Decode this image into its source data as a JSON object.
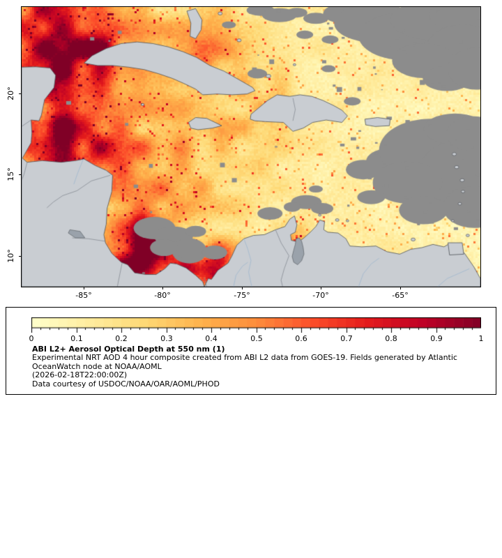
{
  "figure": {
    "background": "#ffffff"
  },
  "map": {
    "x_tick_labels": [
      "-85°",
      "-80°",
      "-75°",
      "-70°",
      "-65°"
    ],
    "y_tick_labels": [
      "20°",
      "15°",
      "10°"
    ]
  },
  "colorbar": {
    "tick_labels": [
      "0",
      "0.1",
      "0.2",
      "0.3",
      "0.4",
      "0.5",
      "0.6",
      "0.7",
      "0.8",
      "0.9",
      "1"
    ]
  },
  "caption": {
    "title": "ABI L2+ Aerosol Optical Depth at 550 nm (1)",
    "line1": "Experimental NRT AOD 4 hour composite created from ABI L2 data from GOES-19. Fields generated by Atlantic",
    "line2": "OceanWatch node at NOAA/AOML",
    "timestamp": "(2026-02-18T22:00:00Z)",
    "credit": "Data courtesy of USDOC/NOAA/OAR/AOML/PHOD"
  },
  "chart_data": {
    "type": "heatmap",
    "title": "ABI L2+ Aerosol Optical Depth at 550 nm (1)",
    "x_ticks": [
      -85,
      -80,
      -75,
      -70,
      -65
    ],
    "y_ticks": [
      20,
      15,
      10
    ],
    "lon_range": [
      -88.9,
      -59.9
    ],
    "lat_range": [
      8.1,
      25.3
    ],
    "value_range": [
      0,
      1
    ],
    "colorbar_ticks": [
      0,
      0.1,
      0.2,
      0.3,
      0.4,
      0.5,
      0.6,
      0.7,
      0.8,
      0.9,
      1
    ],
    "colorbar_levels": 50,
    "colormap_name": "YlOrRd",
    "colormap_stops": [
      {
        "pos": 0.0,
        "color": "#ffffcc"
      },
      {
        "pos": 0.125,
        "color": "#ffeda0"
      },
      {
        "pos": 0.25,
        "color": "#fed976"
      },
      {
        "pos": 0.375,
        "color": "#feb24c"
      },
      {
        "pos": 0.5,
        "color": "#fd8d3c"
      },
      {
        "pos": 0.625,
        "color": "#fc4e2a"
      },
      {
        "pos": 0.75,
        "color": "#e31a1c"
      },
      {
        "pos": 0.875,
        "color": "#bd0026"
      },
      {
        "pos": 1.0,
        "color": "#800026"
      }
    ],
    "land_color": "#c9cdd2",
    "missing_color": "#8c8c8c",
    "lake_color": "#9aa2ab",
    "coast_color": "#4d5257",
    "border_color": "#7d838b",
    "river_color": "#9ab4cf",
    "aod_base": 0.17,
    "aod_east_gradient": 0.07,
    "cloud_speckles": 380,
    "aod_hotspots": [
      {
        "lon": -87.8,
        "lat": 24.6,
        "amp": 0.5,
        "r": 95
      },
      {
        "lon": -85.0,
        "lat": 17.5,
        "amp": 0.22,
        "r": 150
      },
      {
        "lon": -86.5,
        "lat": 21.0,
        "amp": 0.3,
        "r": 60
      },
      {
        "lon": -86.6,
        "lat": 18.5,
        "amp": 0.3,
        "r": 70
      },
      {
        "lon": -85.5,
        "lat": 16.6,
        "amp": 0.3,
        "r": 45
      },
      {
        "lon": -83.5,
        "lat": 22.9,
        "amp": 0.28,
        "r": 55
      },
      {
        "lon": -77.5,
        "lat": 23.0,
        "amp": 0.25,
        "r": 60
      },
      {
        "lon": -81.6,
        "lat": 10.6,
        "amp": 0.8,
        "r": 55
      },
      {
        "lon": -77.15,
        "lat": 9.1,
        "amp": 0.75,
        "r": 40
      },
      {
        "lon": -71.6,
        "lat": 9.9,
        "amp": 0.5,
        "r": 32
      },
      {
        "lon": -74.0,
        "lat": 19.2,
        "amp": 0.12,
        "r": 70
      },
      {
        "lon": -79.5,
        "lat": 15.5,
        "amp": 0.15,
        "r": 110
      }
    ],
    "clouds": [
      [
        -68.3,
        24.9,
        35,
        15
      ],
      [
        -66.5,
        24.3,
        60,
        28
      ],
      [
        -64.5,
        23.5,
        70,
        35
      ],
      [
        -62.5,
        24.5,
        70,
        30
      ],
      [
        -60.5,
        24.8,
        60,
        25
      ],
      [
        -61.0,
        22.5,
        55,
        40
      ],
      [
        -63.5,
        22.0,
        45,
        25
      ],
      [
        -62.0,
        20.9,
        35,
        18
      ],
      [
        -60.2,
        21.5,
        40,
        30
      ],
      [
        -70.3,
        24.6,
        18,
        8
      ],
      [
        -71.5,
        24.95,
        15,
        7
      ],
      [
        -69.4,
        23.3,
        12,
        6
      ],
      [
        -67.3,
        15.3,
        25,
        14
      ],
      [
        -65.8,
        15.8,
        30,
        18
      ],
      [
        -63.0,
        16.5,
        75,
        45
      ],
      [
        -61.0,
        15.0,
        65,
        50
      ],
      [
        -64.5,
        14.5,
        50,
        30
      ],
      [
        -61.5,
        17.8,
        45,
        22
      ],
      [
        -60.3,
        17.5,
        40,
        25
      ],
      [
        -60.3,
        13.0,
        45,
        30
      ],
      [
        -63.5,
        12.8,
        35,
        20
      ],
      [
        -66.8,
        13.6,
        20,
        10
      ],
      [
        -70.9,
        13.3,
        22,
        10
      ],
      [
        -69.9,
        12.9,
        16,
        8
      ],
      [
        -71.8,
        13.0,
        12,
        7
      ],
      [
        -70.3,
        14.1,
        10,
        5
      ],
      [
        -73.2,
        12.6,
        18,
        9
      ],
      [
        -80.5,
        11.7,
        30,
        16
      ],
      [
        -79.3,
        11.2,
        28,
        14
      ],
      [
        -78.3,
        10.3,
        25,
        18
      ],
      [
        -79.9,
        10.5,
        20,
        12
      ],
      [
        -77.9,
        11.5,
        15,
        8
      ],
      [
        -76.7,
        10.2,
        18,
        10
      ],
      [
        -73.8,
        25.1,
        20,
        8
      ],
      [
        -72.6,
        24.8,
        25,
        10
      ],
      [
        -71.0,
        23.6,
        12,
        6
      ],
      [
        -75.8,
        24.2,
        10,
        5
      ],
      [
        -74.0,
        21.2,
        14,
        7
      ],
      [
        -69.5,
        21.5,
        10,
        5
      ],
      [
        -68.0,
        19.5,
        12,
        6
      ]
    ],
    "land_polygons": [
      [
        [
          -88.9,
          21.6
        ],
        [
          -88.0,
          21.62
        ],
        [
          -87.1,
          21.55
        ],
        [
          -86.75,
          21.1
        ],
        [
          -86.85,
          20.35
        ],
        [
          -87.45,
          19.6
        ],
        [
          -87.65,
          18.65
        ],
        [
          -87.8,
          18.3
        ],
        [
          -88.3,
          18.35
        ],
        [
          -88.25,
          17.55
        ],
        [
          -88.3,
          16.95
        ],
        [
          -88.85,
          16.0
        ],
        [
          -88.55,
          15.75
        ],
        [
          -87.6,
          15.85
        ],
        [
          -86.4,
          15.75
        ],
        [
          -85.5,
          15.85
        ],
        [
          -84.95,
          15.95
        ],
        [
          -84.25,
          15.55
        ],
        [
          -83.55,
          15.25
        ],
        [
          -83.15,
          14.95
        ],
        [
          -83.2,
          13.95
        ],
        [
          -83.5,
          12.9
        ],
        [
          -83.55,
          11.95
        ],
        [
          -83.7,
          11.3
        ],
        [
          -83.6,
          10.8
        ],
        [
          -83.2,
          10.15
        ],
        [
          -82.6,
          9.6
        ],
        [
          -82.2,
          9.45
        ],
        [
          -81.75,
          8.95
        ],
        [
          -81.05,
          8.85
        ],
        [
          -80.4,
          8.85
        ],
        [
          -79.85,
          9.2
        ],
        [
          -79.5,
          9.55
        ],
        [
          -79.1,
          9.5
        ],
        [
          -78.5,
          9.25
        ],
        [
          -77.9,
          8.8
        ],
        [
          -77.45,
          8.4
        ],
        [
          -77.35,
          8.1
        ],
        [
          -88.9,
          8.1
        ]
      ],
      [
        [
          -77.35,
          8.1
        ],
        [
          -77.1,
          8.6
        ],
        [
          -76.9,
          8.55
        ],
        [
          -76.5,
          9.1
        ],
        [
          -75.85,
          9.55
        ],
        [
          -75.6,
          10.0
        ],
        [
          -75.3,
          10.65
        ],
        [
          -74.85,
          11.05
        ],
        [
          -74.25,
          11.25
        ],
        [
          -73.55,
          11.3
        ],
        [
          -72.85,
          11.6
        ],
        [
          -72.25,
          11.8
        ],
        [
          -71.95,
          12.25
        ],
        [
          -71.65,
          12.45
        ],
        [
          -71.5,
          11.9
        ],
        [
          -71.6,
          11.45
        ],
        [
          -71.9,
          11.3
        ],
        [
          -71.85,
          10.95
        ],
        [
          -71.4,
          10.85
        ],
        [
          -71.05,
          11.1
        ],
        [
          -70.65,
          11.45
        ],
        [
          -70.3,
          11.8
        ],
        [
          -70.05,
          12.2
        ],
        [
          -69.75,
          12.1
        ],
        [
          -69.8,
          11.6
        ],
        [
          -69.55,
          11.45
        ],
        [
          -68.9,
          11.4
        ],
        [
          -68.4,
          11.05
        ],
        [
          -68.15,
          10.6
        ],
        [
          -67.4,
          10.55
        ],
        [
          -66.5,
          10.6
        ],
        [
          -65.8,
          10.25
        ],
        [
          -65.0,
          10.1
        ],
        [
          -64.3,
          10.4
        ],
        [
          -63.6,
          10.5
        ],
        [
          -62.9,
          10.7
        ],
        [
          -62.2,
          10.55
        ],
        [
          -61.85,
          10.75
        ],
        [
          -61.5,
          10.6
        ],
        [
          -60.9,
          10.15
        ],
        [
          -60.3,
          9.3
        ],
        [
          -59.9,
          8.6
        ],
        [
          -59.9,
          8.1
        ]
      ],
      [
        [
          -84.95,
          21.85
        ],
        [
          -84.45,
          22.3
        ],
        [
          -83.55,
          22.75
        ],
        [
          -82.6,
          23.05
        ],
        [
          -81.6,
          23.15
        ],
        [
          -80.6,
          23.05
        ],
        [
          -79.65,
          22.85
        ],
        [
          -78.7,
          22.55
        ],
        [
          -77.85,
          22.2
        ],
        [
          -77.0,
          21.7
        ],
        [
          -76.1,
          21.35
        ],
        [
          -75.2,
          20.85
        ],
        [
          -74.3,
          20.35
        ],
        [
          -74.15,
          20.15
        ],
        [
          -74.65,
          19.95
        ],
        [
          -75.6,
          19.9
        ],
        [
          -76.55,
          19.95
        ],
        [
          -77.45,
          19.9
        ],
        [
          -77.9,
          20.25
        ],
        [
          -78.65,
          20.6
        ],
        [
          -79.35,
          20.9
        ],
        [
          -80.25,
          21.2
        ],
        [
          -81.15,
          21.45
        ],
        [
          -82.15,
          21.6
        ],
        [
          -83.15,
          21.7
        ],
        [
          -84.1,
          21.7
        ]
      ],
      [
        [
          -74.45,
          18.4
        ],
        [
          -74.4,
          18.7
        ],
        [
          -73.35,
          19.55
        ],
        [
          -72.75,
          19.9
        ],
        [
          -71.95,
          19.8
        ],
        [
          -71.3,
          19.9
        ],
        [
          -70.55,
          19.8
        ],
        [
          -69.85,
          19.55
        ],
        [
          -69.2,
          19.25
        ],
        [
          -68.65,
          18.95
        ],
        [
          -68.3,
          18.6
        ],
        [
          -68.65,
          18.2
        ],
        [
          -69.65,
          18.35
        ],
        [
          -70.5,
          18.2
        ],
        [
          -71.1,
          17.85
        ],
        [
          -71.75,
          17.65
        ],
        [
          -72.35,
          18.2
        ],
        [
          -73.5,
          18.25
        ],
        [
          -74.15,
          18.3
        ]
      ],
      [
        [
          -78.35,
          18.2
        ],
        [
          -77.9,
          18.5
        ],
        [
          -77.2,
          18.45
        ],
        [
          -76.25,
          18.0
        ],
        [
          -76.85,
          17.85
        ],
        [
          -77.75,
          17.75
        ],
        [
          -78.2,
          17.85
        ]
      ],
      [
        [
          -67.2,
          18.4
        ],
        [
          -66.4,
          18.5
        ],
        [
          -65.6,
          18.4
        ],
        [
          -65.65,
          18.0
        ],
        [
          -66.55,
          17.95
        ],
        [
          -67.15,
          18.05
        ]
      ],
      [
        [
          -78.45,
          25.05
        ],
        [
          -77.9,
          25.2
        ],
        [
          -77.5,
          24.5
        ],
        [
          -77.55,
          23.9
        ],
        [
          -77.9,
          23.35
        ],
        [
          -78.25,
          23.5
        ],
        [
          -78.2,
          24.3
        ]
      ],
      [
        [
          -61.95,
          10.8
        ],
        [
          -61.05,
          10.8
        ],
        [
          -60.95,
          10.1
        ],
        [
          -61.85,
          10.05
        ]
      ]
    ],
    "islands": [
      [
        -81.25,
        19.3,
        2.2
      ],
      [
        -70.05,
        12.5,
        2
      ],
      [
        -68.95,
        12.2,
        2.6
      ],
      [
        -68.3,
        12.15,
        2
      ],
      [
        -64.15,
        11.0,
        3
      ],
      [
        -61.55,
        16.25,
        3
      ],
      [
        -61.4,
        15.45,
        3
      ],
      [
        -61.05,
        14.65,
        3
      ],
      [
        -61.0,
        13.95,
        2.5
      ],
      [
        -61.2,
        13.2,
        2.5
      ],
      [
        -61.65,
        12.15,
        2
      ],
      [
        -60.7,
        11.25,
        2.5
      ],
      [
        -71.65,
        21.75,
        2
      ],
      [
        -73.3,
        21.05,
        3.5
      ],
      [
        -75.15,
        23.25,
        3
      ],
      [
        -76.35,
        24.9,
        3
      ]
    ],
    "lakes": [
      [
        [
          -71.55,
          11.05
        ],
        [
          -71.35,
          11.1
        ],
        [
          -71.2,
          10.9
        ],
        [
          -71.1,
          10.5
        ],
        [
          -71.05,
          10.1
        ],
        [
          -71.2,
          9.7
        ],
        [
          -71.45,
          9.45
        ],
        [
          -71.7,
          9.6
        ],
        [
          -71.8,
          9.95
        ],
        [
          -71.7,
          10.35
        ],
        [
          -71.6,
          10.7
        ]
      ],
      [
        [
          -85.85,
          11.6
        ],
        [
          -85.2,
          11.5
        ],
        [
          -84.9,
          11.1
        ],
        [
          -85.5,
          11.1
        ],
        [
          -85.95,
          11.4
        ]
      ]
    ],
    "rivers": [
      [
        [
          -74.85,
          11.05
        ],
        [
          -74.6,
          10.4
        ],
        [
          -74.4,
          9.7
        ],
        [
          -74.55,
          9.0
        ],
        [
          -74.4,
          8.3
        ],
        [
          -74.35,
          8.1
        ]
      ],
      [
        [
          -75.5,
          8.1
        ],
        [
          -75.35,
          8.8
        ],
        [
          -74.95,
          9.35
        ],
        [
          -74.6,
          9.6
        ]
      ],
      [
        [
          -67.6,
          8.1
        ],
        [
          -67.3,
          8.9
        ],
        [
          -66.8,
          9.5
        ],
        [
          -66.3,
          9.85
        ]
      ],
      [
        [
          -62.6,
          8.1
        ],
        [
          -62.0,
          8.6
        ],
        [
          -61.3,
          8.9
        ],
        [
          -60.6,
          9.2
        ]
      ],
      [
        [
          -85.0,
          15.95
        ],
        [
          -85.35,
          15.1
        ],
        [
          -85.6,
          14.4
        ]
      ]
    ],
    "borders": [
      [
        [
          -88.3,
          18.35
        ],
        [
          -88.9,
          17.95
        ]
      ],
      [
        [
          -88.55,
          15.75
        ],
        [
          -88.75,
          15.0
        ],
        [
          -88.9,
          14.65
        ]
      ],
      [
        [
          -83.3,
          14.95
        ],
        [
          -84.5,
          14.6
        ],
        [
          -85.4,
          14.0
        ],
        [
          -86.3,
          13.7
        ],
        [
          -86.9,
          13.3
        ],
        [
          -87.3,
          12.95
        ]
      ],
      [
        [
          -83.65,
          10.9
        ],
        [
          -84.7,
          11.05
        ],
        [
          -85.7,
          11.1
        ]
      ],
      [
        [
          -82.55,
          9.55
        ],
        [
          -82.85,
          8.1
        ]
      ],
      [
        [
          -77.35,
          8.65
        ],
        [
          -77.2,
          8.1
        ]
      ],
      [
        [
          -72.85,
          11.6
        ],
        [
          -72.5,
          10.8
        ],
        [
          -72.0,
          10.0
        ],
        [
          -72.3,
          9.2
        ],
        [
          -72.5,
          8.5
        ],
        [
          -72.4,
          8.1
        ]
      ],
      [
        [
          -71.75,
          19.7
        ],
        [
          -71.6,
          19.0
        ],
        [
          -71.75,
          18.3
        ]
      ]
    ]
  }
}
